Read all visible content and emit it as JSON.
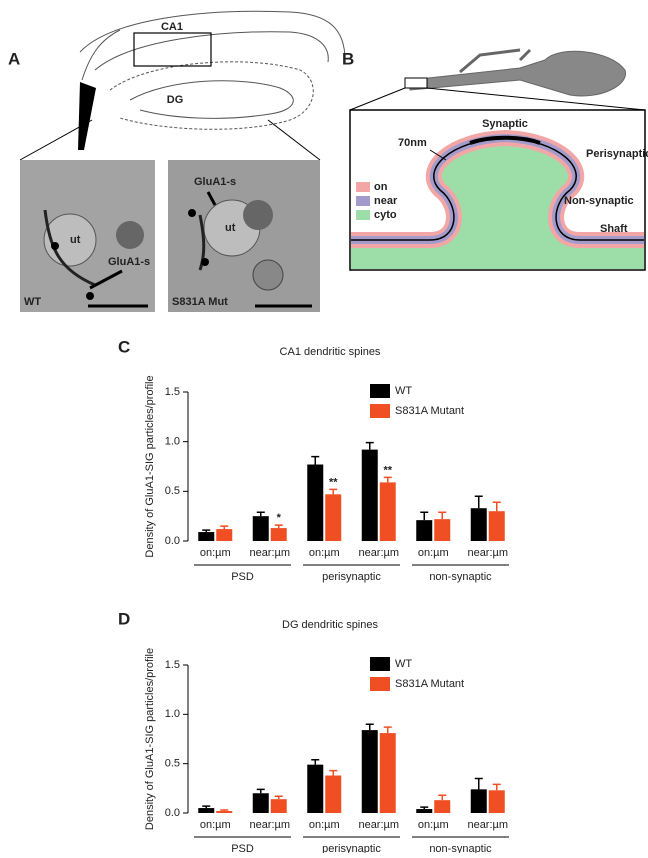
{
  "panels": {
    "A": {
      "letter": "A",
      "region_top": "CA1",
      "region_bottom": "DG",
      "images": [
        {
          "ut": "ut",
          "marker": "GluA1-s",
          "label": "WT"
        },
        {
          "ut": "ut",
          "marker": "GluA1-s",
          "label": "S831A Mut"
        }
      ]
    },
    "B": {
      "letter": "B",
      "synaptic": "Synaptic",
      "scale": "70nm",
      "perisynaptic": "Perisynaptic",
      "nonsynaptic": "Non-synaptic",
      "shaft": "Shaft",
      "legend": [
        {
          "label": "on",
          "color": "#f2a6a6"
        },
        {
          "label": "near",
          "color": "#a39bcb"
        },
        {
          "label": "cyto",
          "color": "#9ddea8"
        }
      ]
    },
    "C": {
      "letter": "C"
    },
    "D": {
      "letter": "D"
    }
  },
  "chart_data": [
    {
      "type": "bar",
      "title": "CA1 dendritic spines",
      "y_label": "Density of GluA1-SIG particles/profile",
      "categories": [
        "on:µm",
        "near:µm",
        "on:µm",
        "near:µm",
        "on:µm",
        "near:µm"
      ],
      "groups": [
        "PSD",
        "perisynaptic",
        "non-synaptic"
      ],
      "series": [
        {
          "name": "WT",
          "color": "#000000",
          "values": [
            0.09,
            0.25,
            0.77,
            0.92,
            0.21,
            0.33
          ],
          "errors": [
            0.02,
            0.04,
            0.08,
            0.07,
            0.08,
            0.12
          ]
        },
        {
          "name": "S831A Mutant",
          "color": "#f04e23",
          "values": [
            0.12,
            0.13,
            0.47,
            0.59,
            0.22,
            0.3
          ],
          "errors": [
            0.03,
            0.03,
            0.05,
            0.05,
            0.07,
            0.09
          ],
          "significance": [
            null,
            "*",
            "**",
            "**",
            null,
            null
          ]
        }
      ],
      "ylim": [
        0,
        1.5
      ],
      "yticks": [
        {
          "value": 0,
          "label": "0.0"
        },
        {
          "value": 0.5,
          "label": "0.5"
        },
        {
          "value": 1,
          "label": "1.0"
        },
        {
          "value": 1.5,
          "label": "1.5"
        }
      ]
    },
    {
      "type": "bar",
      "title": "DG dendritic spines",
      "y_label": "Density of GluA1-SIG particles/profile",
      "categories": [
        "on:µm",
        "near:µm",
        "on:µm",
        "near:µm",
        "on:µm",
        "near:µm"
      ],
      "groups": [
        "PSD",
        "perisynaptic",
        "non-synaptic"
      ],
      "series": [
        {
          "name": "WT",
          "color": "#000000",
          "values": [
            0.05,
            0.2,
            0.49,
            0.84,
            0.04,
            0.24
          ],
          "errors": [
            0.02,
            0.04,
            0.05,
            0.06,
            0.02,
            0.11
          ]
        },
        {
          "name": "S831A Mutant",
          "color": "#f04e23",
          "values": [
            0.02,
            0.14,
            0.38,
            0.81,
            0.13,
            0.23
          ],
          "errors": [
            0.01,
            0.03,
            0.05,
            0.06,
            0.05,
            0.06
          ]
        }
      ],
      "ylim": [
        0,
        1.5
      ],
      "yticks": [
        {
          "value": 0,
          "label": "0.0"
        },
        {
          "value": 0.5,
          "label": "0.5"
        },
        {
          "value": 1,
          "label": "1.0"
        },
        {
          "value": 1.5,
          "label": "1.5"
        }
      ]
    }
  ]
}
